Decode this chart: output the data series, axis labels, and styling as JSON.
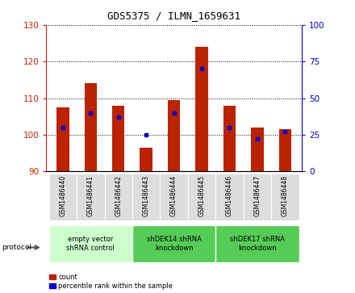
{
  "title": "GDS5375 / ILMN_1659631",
  "samples": [
    "GSM1486440",
    "GSM1486441",
    "GSM1486442",
    "GSM1486443",
    "GSM1486444",
    "GSM1486445",
    "GSM1486446",
    "GSM1486447",
    "GSM1486448"
  ],
  "counts": [
    107.5,
    114.0,
    108.0,
    96.5,
    109.5,
    124.0,
    108.0,
    102.0,
    101.5
  ],
  "percentiles": [
    30,
    40,
    37,
    25,
    40,
    70,
    30,
    22,
    27
  ],
  "bar_bottom": 90,
  "ylim_left": [
    90,
    130
  ],
  "ylim_right": [
    0,
    100
  ],
  "yticks_left": [
    90,
    100,
    110,
    120,
    130
  ],
  "yticks_right": [
    0,
    25,
    50,
    75,
    100
  ],
  "bar_color": "#bb2200",
  "dot_color": "#0000cc",
  "bar_width": 0.45,
  "groups": [
    {
      "label": "empty vector\nshRNA control",
      "start": 0,
      "end": 3,
      "color": "#ccffcc"
    },
    {
      "label": "shDEK14 shRNA\nknockdown",
      "start": 3,
      "end": 6,
      "color": "#55cc55"
    },
    {
      "label": "shDEK17 shRNA\nknockdown",
      "start": 6,
      "end": 9,
      "color": "#55cc55"
    }
  ],
  "protocol_label": "protocol",
  "legend_count_label": "count",
  "legend_percentile_label": "percentile rank within the sample",
  "left_axis_color": "#cc2200",
  "right_axis_color": "#0000cc"
}
